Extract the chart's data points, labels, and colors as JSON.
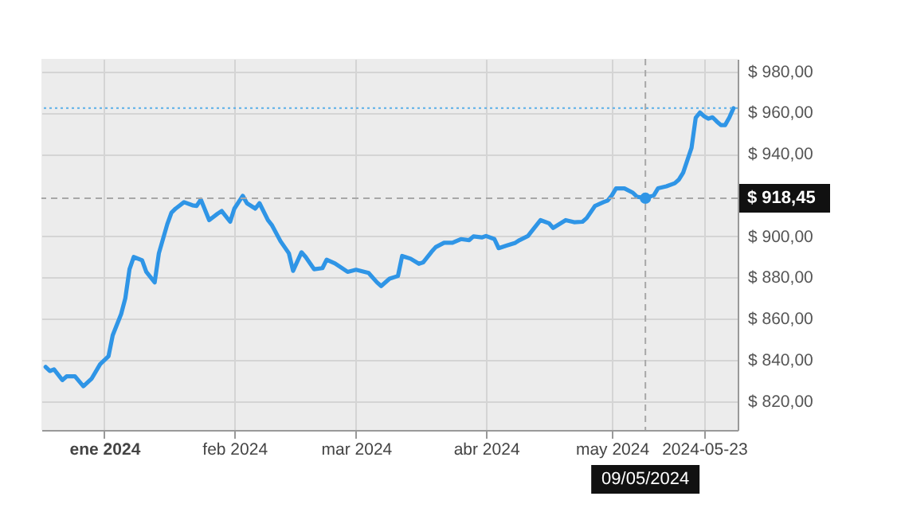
{
  "chart_data": {
    "type": "line",
    "grid": true,
    "line_style": "solid",
    "marker": "none",
    "xlim": [
      "2023-12-17",
      "2024-05-31"
    ],
    "ylim": [
      806,
      986
    ],
    "xticks": [
      {
        "value": "2024-01-01",
        "label": "ene 2024"
      },
      {
        "value": "2024-02-01",
        "label": "feb 2024"
      },
      {
        "value": "2024-03-01",
        "label": "mar 2024"
      },
      {
        "value": "2024-04-01",
        "label": "abr 2024"
      },
      {
        "value": "2024-05-01",
        "label": "may 2024"
      },
      {
        "value": "2024-05-23",
        "label": "2024-05-23"
      }
    ],
    "yticks": [
      {
        "value": 820,
        "label": "$ 820,00"
      },
      {
        "value": 840,
        "label": "$ 840,00"
      },
      {
        "value": 860,
        "label": "$ 860,00"
      },
      {
        "value": 880,
        "label": "$ 880,00"
      },
      {
        "value": 900,
        "label": "$ 900,00"
      },
      {
        "value": 940,
        "label": "$ 940,00"
      },
      {
        "value": 960,
        "label": "$ 960,00"
      },
      {
        "value": 980,
        "label": "$ 980,00"
      }
    ],
    "ref_lines": [
      {
        "axis": "y",
        "value": 962.1,
        "color": "#5aaee8",
        "line_style": "dotted"
      },
      {
        "axis": "y",
        "value": 918.45,
        "label": "$ 918,45",
        "color": "#a8a8a8",
        "line_style": "dashed"
      },
      {
        "axis": "x",
        "value": "2024-05-09",
        "label": "09/05/2024",
        "color": "#a8a8a8",
        "line_style": "dashed"
      }
    ],
    "series": [
      {
        "color": "#2f95e6",
        "x": [
          "2023-12-18",
          "2023-12-19",
          "2023-12-20",
          "2023-12-22",
          "2023-12-23",
          "2023-12-25",
          "2023-12-27",
          "2023-12-29",
          "2023-12-31",
          "2024-01-02",
          "2024-01-03",
          "2024-01-05",
          "2024-01-06",
          "2024-01-07",
          "2024-01-08",
          "2024-01-10",
          "2024-01-11",
          "2024-01-13",
          "2024-01-14",
          "2024-01-16",
          "2024-01-17",
          "2024-01-18",
          "2024-01-20",
          "2024-01-22",
          "2024-01-23",
          "2024-01-24",
          "2024-01-26",
          "2024-01-28",
          "2024-01-29",
          "2024-01-31",
          "2024-02-01",
          "2024-02-03",
          "2024-02-04",
          "2024-02-06",
          "2024-02-07",
          "2024-02-09",
          "2024-02-10",
          "2024-02-12",
          "2024-02-14",
          "2024-02-15",
          "2024-02-17",
          "2024-02-18",
          "2024-02-20",
          "2024-02-22",
          "2024-02-23",
          "2024-02-25",
          "2024-02-28",
          "2024-03-01",
          "2024-03-04",
          "2024-03-06",
          "2024-03-07",
          "2024-03-09",
          "2024-03-11",
          "2024-03-12",
          "2024-03-14",
          "2024-03-16",
          "2024-03-17",
          "2024-03-19",
          "2024-03-20",
          "2024-03-22",
          "2024-03-24",
          "2024-03-26",
          "2024-03-28",
          "2024-03-29",
          "2024-03-31",
          "2024-04-01",
          "2024-04-03",
          "2024-04-04",
          "2024-04-06",
          "2024-04-08",
          "2024-04-09",
          "2024-04-11",
          "2024-04-12",
          "2024-04-14",
          "2024-04-16",
          "2024-04-17",
          "2024-04-19",
          "2024-04-20",
          "2024-04-22",
          "2024-04-24",
          "2024-04-25",
          "2024-04-27",
          "2024-04-29",
          "2024-04-30",
          "2024-05-01",
          "2024-05-02",
          "2024-05-04",
          "2024-05-06",
          "2024-05-07",
          "2024-05-09",
          "2024-05-11",
          "2024-05-12",
          "2024-05-14",
          "2024-05-16",
          "2024-05-17",
          "2024-05-18",
          "2024-05-20",
          "2024-05-21",
          "2024-05-22",
          "2024-05-23",
          "2024-05-24",
          "2024-05-25",
          "2024-05-26",
          "2024-05-27",
          "2024-05-28",
          "2024-05-29",
          "2024-05-30"
        ],
        "values": [
          836.6,
          834.6,
          835.4,
          830.2,
          832.0,
          832.0,
          827.2,
          831.0,
          837.9,
          841.8,
          852.0,
          862.2,
          869.9,
          884.0,
          889.9,
          888.3,
          882.7,
          877.6,
          891.7,
          905.8,
          911.4,
          913.4,
          916.5,
          915.0,
          914.7,
          917.8,
          907.8,
          910.9,
          912.2,
          907.0,
          913.4,
          919.6,
          916.0,
          913.4,
          916.0,
          907.8,
          905.2,
          897.6,
          891.7,
          883.2,
          892.2,
          889.9,
          884.0,
          884.5,
          888.6,
          886.8,
          882.7,
          883.7,
          882.2,
          877.6,
          875.8,
          879.4,
          880.7,
          890.4,
          889.1,
          886.6,
          887.3,
          892.4,
          894.7,
          896.8,
          896.8,
          898.6,
          898.1,
          899.9,
          899.4,
          900.1,
          898.6,
          894.2,
          895.5,
          896.8,
          898.1,
          900.1,
          902.7,
          907.8,
          906.3,
          904.0,
          906.5,
          907.8,
          906.8,
          907.0,
          908.8,
          914.7,
          916.5,
          917.3,
          919.8,
          923.2,
          923.2,
          921.1,
          919.1,
          918.5,
          919.8,
          923.2,
          924.2,
          925.7,
          927.5,
          930.8,
          942.9,
          957.5,
          960.0,
          958.2,
          957.0,
          957.7,
          955.7,
          953.9,
          953.9,
          957.5,
          962.1
        ]
      }
    ]
  }
}
